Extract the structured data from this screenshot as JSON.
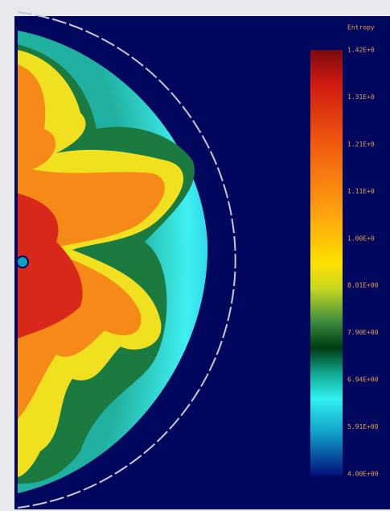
{
  "colorbar": {
    "title": "Entropy",
    "labels": [
      "1.42E+0",
      "1.31E+0",
      "1.21E+0",
      "1.11E+0",
      "1.00E+0",
      "8.01E+00",
      "7.90E+00",
      "6.94E+00",
      "5.91E+00",
      "4.00E+00"
    ]
  }
}
